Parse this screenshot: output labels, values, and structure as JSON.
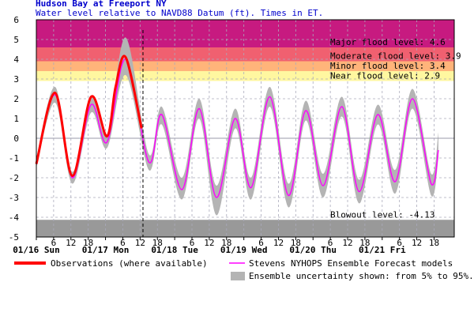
{
  "chart_data": {
    "type": "line",
    "title": "Hudson Bay at Freeport NY",
    "subtitle": "Water level relative to NAVD88 Datum (ft). Times in ET.",
    "xlim": [
      0,
      145
    ],
    "ylim": [
      -5,
      6
    ],
    "yticks": [
      -5,
      -4,
      -3,
      -2,
      -1,
      0,
      1,
      2,
      3,
      4,
      5,
      6
    ],
    "xticks": [
      {
        "value": 0,
        "label": "01/16 Sun"
      },
      6,
      12,
      18,
      {
        "value": 24,
        "label": "01/17 Mon"
      },
      {
        "value": 30,
        "label": "6"
      },
      {
        "value": 36,
        "label": "12"
      },
      {
        "value": 42,
        "label": "18"
      },
      {
        "value": 48,
        "label": "01/18 Tue"
      },
      {
        "value": 54,
        "label": "6"
      },
      {
        "value": 60,
        "label": "12"
      },
      {
        "value": 66,
        "label": "18"
      },
      {
        "value": 72,
        "label": "01/19 Wed"
      },
      {
        "value": 78,
        "label": "6"
      },
      {
        "value": 84,
        "label": "12"
      },
      {
        "value": 90,
        "label": "18"
      },
      {
        "value": 96,
        "label": "01/20 Thu"
      },
      {
        "value": 102,
        "label": "6"
      },
      {
        "value": 108,
        "label": "12"
      },
      {
        "value": 114,
        "label": "18"
      },
      {
        "value": 120,
        "label": "01/21 Fri"
      },
      {
        "value": 126,
        "label": "6"
      },
      {
        "value": 132,
        "label": "12"
      },
      {
        "value": 138,
        "label": "18"
      }
    ],
    "grid": true,
    "now_x": 37,
    "levels": [
      {
        "name": "Major flood level: 4.6",
        "value": 4.6,
        "color": "#c71a80"
      },
      {
        "name": "Moderate flood level: 3.9",
        "value": 3.9,
        "color": "#f06070"
      },
      {
        "name": "Minor flood level: 3.4",
        "value": 3.4,
        "color": "#ffb47a"
      },
      {
        "name": "Near flood level: 2.9",
        "value": 2.9,
        "color": "#fff7a0"
      }
    ],
    "blowout": {
      "name": "Blowout level: -4.13",
      "value": -4.13,
      "color": "#999999"
    },
    "band": {
      "name": "Ensemble uncertainty shown: from 5% to 95%.",
      "color": "#b4b4b4",
      "x": [
        0,
        6.5,
        12.5,
        19,
        24.5,
        31,
        39,
        43.5,
        50.5,
        56.5,
        62.5,
        69,
        74.5,
        81,
        87.5,
        93.5,
        99.5,
        106,
        112,
        118.5,
        124.5,
        130.5,
        137,
        139.5
      ],
      "lower": [
        -1.5,
        1.8,
        -2.3,
        1.3,
        -0.5,
        3.2,
        -1.6,
        0.7,
        -3.1,
        1.0,
        -3.9,
        0.5,
        -3.1,
        1.6,
        -3.5,
        0.9,
        -3.0,
        1.1,
        -3.3,
        0.7,
        -2.8,
        1.5,
        -2.9,
        -1.0
      ],
      "upper": [
        -1.0,
        2.6,
        -1.7,
        2.1,
        0.2,
        5.1,
        -0.8,
        1.6,
        -2.0,
        2.0,
        -2.4,
        1.5,
        -2.0,
        2.6,
        -2.3,
        1.9,
        -1.8,
        2.1,
        -2.1,
        1.7,
        -1.6,
        2.5,
        -1.8,
        0.3
      ]
    },
    "series": [
      {
        "name": "Observations (where available)",
        "color": "#ff0000",
        "x": [
          0,
          6.5,
          12.5,
          19,
          24.5,
          27.5,
          31,
          36.5
        ],
        "values": [
          -1.3,
          2.3,
          -1.9,
          2.1,
          0.1,
          2.6,
          4.1,
          0.5
        ]
      },
      {
        "name": "Stevens NYHOPS Ensemble Forecast models",
        "color": "#ff00ff",
        "x": [
          0,
          6.5,
          12.5,
          19,
          24.5,
          31,
          39,
          43.5,
          50.5,
          56.5,
          62.5,
          69,
          74.5,
          81,
          87.5,
          93.5,
          99.5,
          106,
          112,
          118.5,
          124.5,
          130.5,
          137,
          139.5
        ],
        "values": [
          -1.3,
          2.2,
          -2.0,
          1.7,
          -0.2,
          4.0,
          -1.2,
          1.2,
          -2.6,
          1.5,
          -3.0,
          1.0,
          -2.5,
          2.1,
          -2.9,
          1.4,
          -2.4,
          1.6,
          -2.7,
          1.2,
          -2.2,
          2.0,
          -2.3,
          -0.6
        ]
      }
    ]
  }
}
